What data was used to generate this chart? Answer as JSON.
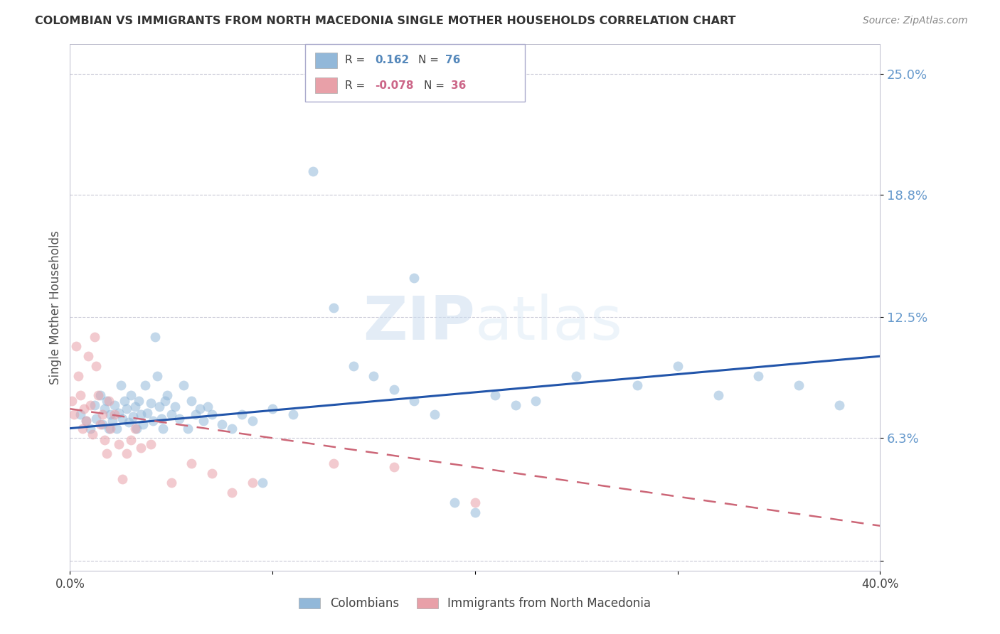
{
  "title": "COLOMBIAN VS IMMIGRANTS FROM NORTH MACEDONIA SINGLE MOTHER HOUSEHOLDS CORRELATION CHART",
  "source": "Source: ZipAtlas.com",
  "ylabel": "Single Mother Households",
  "blue_color": "#92b8d9",
  "pink_color": "#e8a0a8",
  "blue_line_color": "#2255aa",
  "pink_line_color": "#cc6677",
  "watermark_zip": "ZIP",
  "watermark_atlas": "atlas",
  "xlim": [
    0.0,
    0.4
  ],
  "ylim": [
    -0.005,
    0.265
  ],
  "yticks": [
    0.0,
    0.063,
    0.125,
    0.188,
    0.25
  ],
  "ytick_labels": [
    "",
    "6.3%",
    "12.5%",
    "18.8%",
    "25.0%"
  ],
  "xtick_vals": [
    0.0,
    0.1,
    0.2,
    0.3,
    0.4
  ],
  "xtick_labels": [
    "0.0%",
    "",
    "",
    "",
    "40.0%"
  ],
  "colombians_x": [
    0.005,
    0.008,
    0.01,
    0.012,
    0.013,
    0.015,
    0.016,
    0.017,
    0.018,
    0.019,
    0.02,
    0.021,
    0.022,
    0.023,
    0.024,
    0.025,
    0.026,
    0.027,
    0.028,
    0.029,
    0.03,
    0.031,
    0.032,
    0.033,
    0.034,
    0.035,
    0.036,
    0.037,
    0.038,
    0.04,
    0.041,
    0.042,
    0.043,
    0.044,
    0.045,
    0.046,
    0.047,
    0.048,
    0.05,
    0.052,
    0.054,
    0.056,
    0.058,
    0.06,
    0.062,
    0.064,
    0.066,
    0.068,
    0.07,
    0.075,
    0.08,
    0.085,
    0.09,
    0.095,
    0.1,
    0.11,
    0.12,
    0.13,
    0.14,
    0.15,
    0.16,
    0.17,
    0.18,
    0.19,
    0.2,
    0.21,
    0.22,
    0.25,
    0.28,
    0.3,
    0.32,
    0.34,
    0.36,
    0.38,
    0.17,
    0.23
  ],
  "colombians_y": [
    0.075,
    0.072,
    0.068,
    0.08,
    0.073,
    0.085,
    0.07,
    0.078,
    0.082,
    0.068,
    0.075,
    0.072,
    0.08,
    0.068,
    0.076,
    0.09,
    0.073,
    0.082,
    0.078,
    0.071,
    0.085,
    0.074,
    0.079,
    0.068,
    0.082,
    0.075,
    0.07,
    0.09,
    0.076,
    0.081,
    0.072,
    0.115,
    0.095,
    0.079,
    0.073,
    0.068,
    0.082,
    0.085,
    0.075,
    0.079,
    0.073,
    0.09,
    0.068,
    0.082,
    0.075,
    0.078,
    0.072,
    0.079,
    0.075,
    0.07,
    0.068,
    0.075,
    0.072,
    0.04,
    0.078,
    0.075,
    0.2,
    0.13,
    0.1,
    0.095,
    0.088,
    0.082,
    0.075,
    0.03,
    0.025,
    0.085,
    0.08,
    0.095,
    0.09,
    0.1,
    0.085,
    0.095,
    0.09,
    0.08,
    0.145,
    0.082
  ],
  "macedonia_x": [
    0.001,
    0.002,
    0.003,
    0.004,
    0.005,
    0.006,
    0.007,
    0.008,
    0.009,
    0.01,
    0.011,
    0.012,
    0.013,
    0.014,
    0.015,
    0.016,
    0.017,
    0.018,
    0.019,
    0.02,
    0.022,
    0.024,
    0.026,
    0.028,
    0.03,
    0.032,
    0.035,
    0.04,
    0.05,
    0.06,
    0.07,
    0.08,
    0.09,
    0.13,
    0.16,
    0.2
  ],
  "macedonia_y": [
    0.082,
    0.075,
    0.11,
    0.095,
    0.085,
    0.068,
    0.078,
    0.072,
    0.105,
    0.08,
    0.065,
    0.115,
    0.1,
    0.085,
    0.07,
    0.075,
    0.062,
    0.055,
    0.082,
    0.068,
    0.075,
    0.06,
    0.042,
    0.055,
    0.062,
    0.068,
    0.058,
    0.06,
    0.04,
    0.05,
    0.045,
    0.035,
    0.04,
    0.05,
    0.048,
    0.03
  ],
  "blue_trend": [
    0.0,
    0.4,
    0.068,
    0.105
  ],
  "pink_trend": [
    0.0,
    0.4,
    0.078,
    0.018
  ]
}
